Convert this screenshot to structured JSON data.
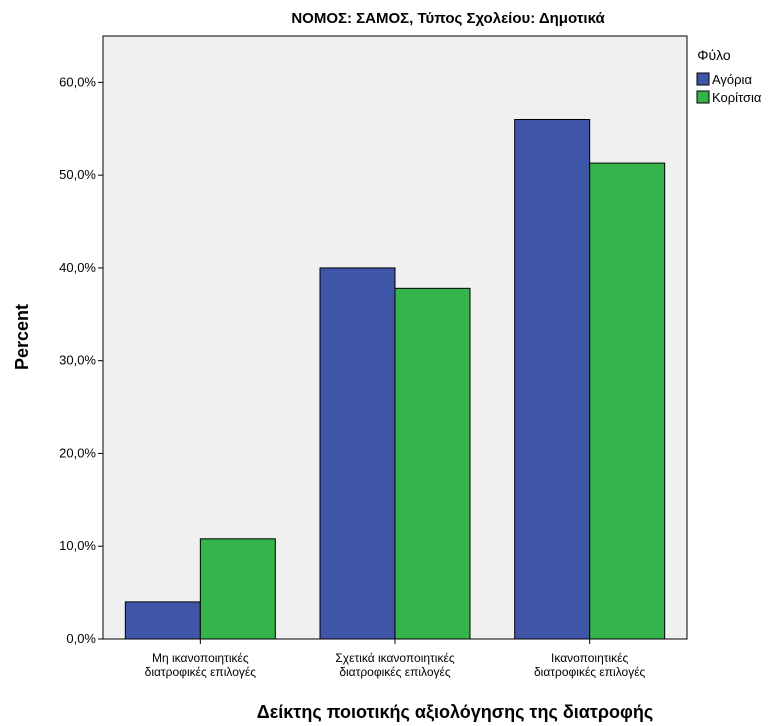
{
  "chart_data": {
    "type": "bar",
    "title": "ΝΟΜΟΣ: ΣΑΜΟΣ, Τύπος Σχολείου: Δημοτικά",
    "xlabel": "Δείκτης ποιοτικής αξιολόγησης της διατροφής",
    "ylabel": "Percent",
    "categories": [
      [
        "Μη ικανοποιητικές",
        "διατροφικές επιλογές"
      ],
      [
        "Σχετικά ικανοποιητικές",
        "διατροφικές επιλογές"
      ],
      [
        "Ικανοποιητικές",
        "διατροφικές επιλογές"
      ]
    ],
    "series": [
      {
        "name": "Αγόρια",
        "color": "#3f55a8",
        "values": [
          4.0,
          40.0,
          56.0
        ]
      },
      {
        "name": "Κορίτσια",
        "color": "#34b44b",
        "values": [
          10.8,
          37.8,
          51.3
        ]
      }
    ],
    "ylim": [
      0,
      65
    ],
    "yticks": [
      0,
      10,
      20,
      30,
      40,
      50,
      60
    ],
    "ytick_labels": [
      "0,0%",
      "10,0%",
      "20,0%",
      "30,0%",
      "40,0%",
      "50,0%",
      "60,0%"
    ],
    "legend": {
      "title": "Φύλο",
      "position": "right"
    },
    "plot_background": "#f0f0f0",
    "grid": false
  }
}
